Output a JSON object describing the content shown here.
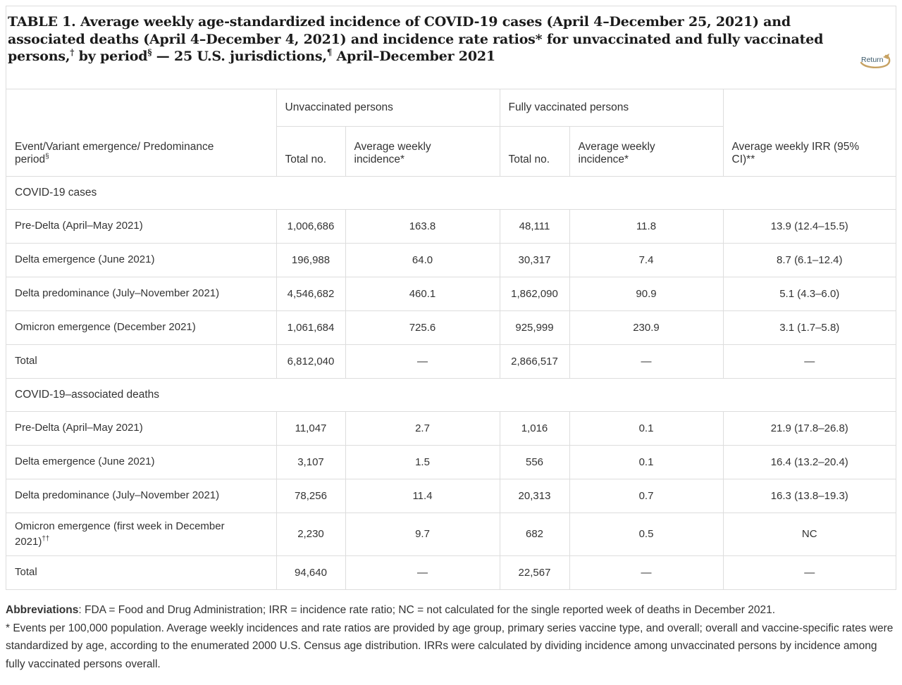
{
  "title": {
    "html": "TABLE 1. Average weekly age-standardized incidence of COVID-19 cases (April 4–December 25, 2021) and associated deaths (April 4–December 4, 2021) and incidence rate ratios* for unvaccinated and fully vaccinated persons,<sup>†</sup> by period<sup>§</sup> — 25 U.S. jurisdictions,<sup>¶</sup> April–December 2021"
  },
  "return_link": {
    "label": "Return"
  },
  "table": {
    "group_headers": [
      {
        "label": "Unvaccinated persons"
      },
      {
        "label": "Fully vaccinated persons"
      }
    ],
    "col_headers": {
      "event": "Event/Variant emergence/ Predominance period<sup>§</sup>",
      "unvax_total": "Total no.",
      "unvax_incidence": "Average weekly incidence*",
      "vax_total": "Total no.",
      "vax_incidence": "Average weekly incidence*",
      "irr": "Average weekly IRR (95% CI)**"
    },
    "sections": [
      {
        "label": "COVID-19 cases",
        "rows": [
          {
            "event": "Pre-Delta (April–May 2021)",
            "unvax_total": "1,006,686",
            "unvax_incidence": "163.8",
            "vax_total": "48,111",
            "vax_incidence": "11.8",
            "irr": "13.9 (12.4–15.5)"
          },
          {
            "event": "Delta emergence (June 2021)",
            "unvax_total": "196,988",
            "unvax_incidence": "64.0",
            "vax_total": "30,317",
            "vax_incidence": "7.4",
            "irr": "8.7 (6.1–12.4)"
          },
          {
            "event": "Delta predominance (July–November 2021)",
            "unvax_total": "4,546,682",
            "unvax_incidence": "460.1",
            "vax_total": "1,862,090",
            "vax_incidence": "90.9",
            "irr": "5.1 (4.3–6.0)"
          },
          {
            "event": "Omicron emergence (December 2021)",
            "unvax_total": "1,061,684",
            "unvax_incidence": "725.6",
            "vax_total": "925,999",
            "vax_incidence": "230.9",
            "irr": "3.1 (1.7–5.8)"
          },
          {
            "event": "Total",
            "unvax_total": "6,812,040",
            "unvax_incidence": "—",
            "vax_total": "2,866,517",
            "vax_incidence": "—",
            "irr": "—"
          }
        ]
      },
      {
        "label": "COVID-19–associated deaths",
        "rows": [
          {
            "event": "Pre-Delta (April–May 2021)",
            "unvax_total": "11,047",
            "unvax_incidence": "2.7",
            "vax_total": "1,016",
            "vax_incidence": "0.1",
            "irr": "21.9 (17.8–26.8)"
          },
          {
            "event": "Delta emergence (June 2021)",
            "unvax_total": "3,107",
            "unvax_incidence": "1.5",
            "vax_total": "556",
            "vax_incidence": "0.1",
            "irr": "16.4 (13.2–20.4)"
          },
          {
            "event": "Delta predominance (July–November 2021)",
            "unvax_total": "78,256",
            "unvax_incidence": "11.4",
            "vax_total": "20,313",
            "vax_incidence": "0.7",
            "irr": "16.3 (13.8–19.3)"
          },
          {
            "event": "Omicron emergence (first week in December 2021)<sup>††</sup>",
            "unvax_total": "2,230",
            "unvax_incidence": "9.7",
            "vax_total": "682",
            "vax_incidence": "0.5",
            "irr": "NC"
          },
          {
            "event": "Total",
            "unvax_total": "94,640",
            "unvax_incidence": "—",
            "vax_total": "22,567",
            "vax_incidence": "—",
            "irr": "—"
          }
        ]
      }
    ]
  },
  "footnotes": {
    "abbreviations_html": "<b>Abbreviations</b>: FDA = Food and Drug Administration; IRR = incidence rate ratio; NC = not calculated for the single reported week of deaths in December 2021.",
    "asterisk_html": "* Events per 100,000 population. Average weekly incidences and rate ratios are provided by age group, primary series vaccine type, and overall; overall and vaccine-specific rates were standardized by age, according to the enumerated 2000 U.S. Census age distribution. IRRs were calculated by dividing incidence among unvaccinated persons by incidence among fully vaccinated persons overall."
  },
  "colors": {
    "text": "#333333",
    "title_text": "#1b1b1b",
    "border": "#dddddd",
    "return_text": "#3c5a6b",
    "return_arrow": "#c7a263"
  }
}
